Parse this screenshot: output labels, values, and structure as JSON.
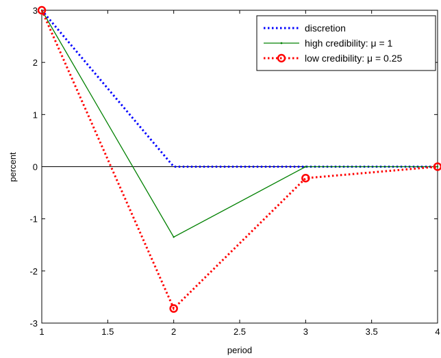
{
  "chart_data": {
    "type": "line",
    "title": "",
    "xlabel": "period",
    "ylabel": "percent",
    "xlim": [
      1,
      4
    ],
    "ylim": [
      -3,
      3
    ],
    "xticks": [
      "1",
      "1.5",
      "2",
      "2.5",
      "3",
      "3.5",
      "4"
    ],
    "yticks": [
      "3",
      "2",
      "1",
      "0",
      "-1",
      "-2",
      "-3"
    ],
    "grid": false,
    "zero_line": true,
    "legend_position": "top-right",
    "series": [
      {
        "name": "discretion",
        "x": [
          1,
          2,
          3,
          4
        ],
        "y": [
          3,
          0,
          0,
          0
        ],
        "color": "#0000ff",
        "style": "dotted"
      },
      {
        "name": "high credibility: μ = 1",
        "x": [
          1,
          2,
          3,
          4
        ],
        "y": [
          3,
          -1.35,
          0,
          0
        ],
        "color": "#008000",
        "style": "solid-small-dots"
      },
      {
        "name": "low credibility: μ = 0.25",
        "x": [
          1,
          2,
          3,
          4
        ],
        "y": [
          3,
          -2.72,
          -0.22,
          0
        ],
        "color": "#ff0000",
        "style": "dotted-circles"
      }
    ]
  }
}
